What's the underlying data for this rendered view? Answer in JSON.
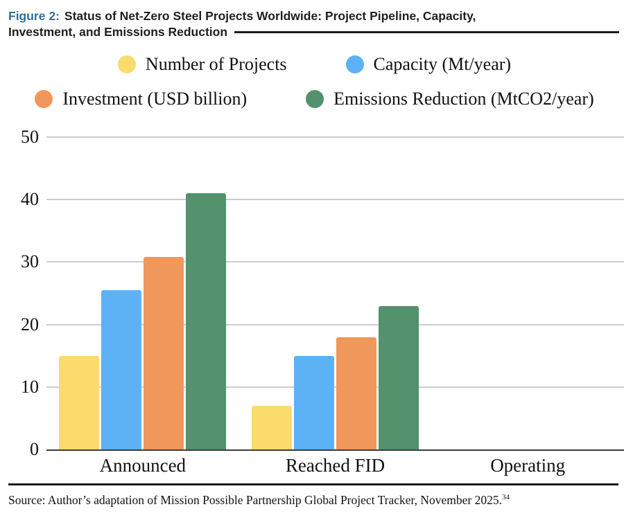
{
  "figure": {
    "label": "Figure 2:",
    "title_lines": [
      "Status of Net-Zero Steel Projects Worldwide: Project Pipeline, Capacity,",
      "Investment, and Emissions Reduction"
    ]
  },
  "chart_data": {
    "type": "bar",
    "title": "Status of Net-Zero Steel Projects Worldwide: Project Pipeline, Capacity, Investment, and Emissions Reduction",
    "categories": [
      "Announced",
      "Reached FID",
      "Operating"
    ],
    "series": [
      {
        "name": "Number of Projects",
        "color": "#FADB6C",
        "values": [
          15,
          7,
          0
        ]
      },
      {
        "name": "Capacity (Mt/year)",
        "color": "#5DB1F5",
        "values": [
          25.5,
          15,
          0
        ]
      },
      {
        "name": "Investment (USD billion)",
        "color": "#F0975B",
        "values": [
          30.8,
          18,
          0
        ]
      },
      {
        "name": "Emissions Reduction (MtCO2/year)",
        "color": "#52926C",
        "values": [
          41,
          23,
          0
        ]
      }
    ],
    "xlabel": "",
    "ylabel": "",
    "ylim": [
      0,
      50
    ],
    "yticks": [
      0,
      10,
      20,
      30,
      40,
      50
    ],
    "grid": true,
    "legend_position": "top",
    "legend_rows": [
      [
        0,
        1
      ],
      [
        2,
        3
      ]
    ]
  },
  "source": {
    "text": "Source: Author’s adaptation of Mission Possible Partnership Global Project Tracker, November 2025.",
    "footnote_mark": "34"
  },
  "colors": {
    "figure_label": "#2E7195",
    "title_text": "#1F1F1F",
    "rule": "#1A1A1A",
    "gridline": "#CCCCCC",
    "axis_line": "#3C3C3C"
  }
}
